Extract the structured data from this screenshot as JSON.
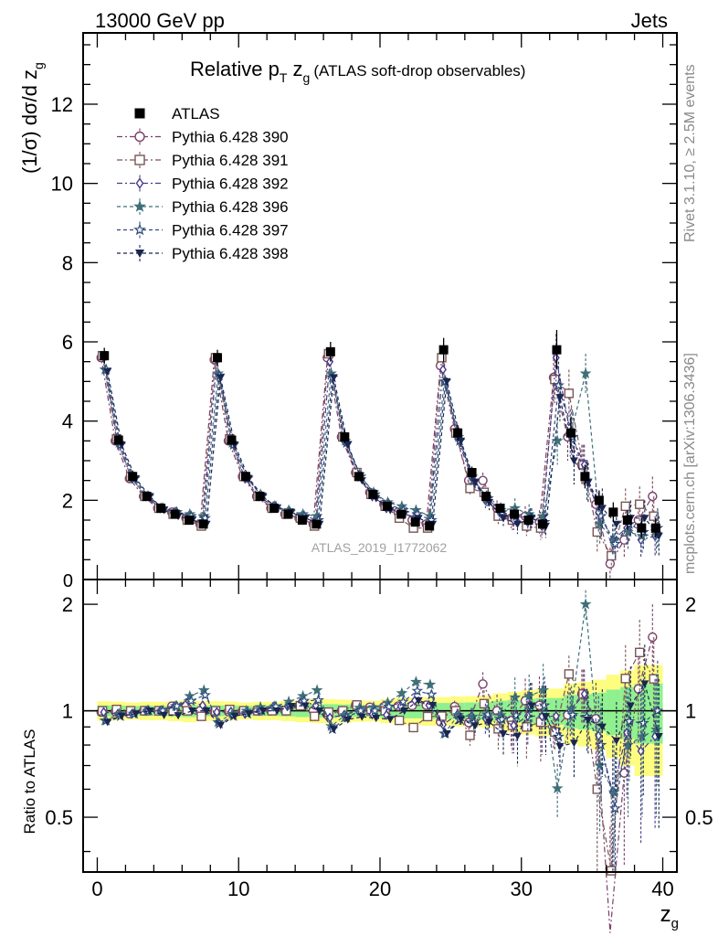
{
  "header": {
    "left": "13000 GeV pp",
    "right": "Jets"
  },
  "side_labels": {
    "rivet": "Rivet 3.1.10, ≥ 2.5M events",
    "mcplots": "mcplots.cern.ch [arXiv:1306.3436]"
  },
  "watermark": "ATLAS_2019_I1772062",
  "chart_data": {
    "type": "line",
    "title": "Relative pT zg (ATLAS soft-drop observables)",
    "title_parts": {
      "main": "Relative p",
      "sub": "T",
      "tail": " z",
      "tail_sub": "g",
      "paren": "(ATLAS soft-drop observables)"
    },
    "ylabel": "(1/σ) dσ/d z",
    "ylabel_sub": "g",
    "xlabel": "z",
    "xlabel_sub": "g",
    "ratio_ylabel": "Ratio to ATLAS",
    "xlim": [
      -1,
      41
    ],
    "ylim": [
      0,
      13.8
    ],
    "ratio_ylim": [
      0.35,
      2.35
    ],
    "x_ticks": [
      "0",
      "10",
      "20",
      "30",
      "40"
    ],
    "y_ticks": [
      "2",
      "4",
      "6",
      "8",
      "10",
      "12"
    ],
    "ratio_ticks": [
      "0.5",
      "1",
      "2"
    ],
    "legend_position": "top-left",
    "x": [
      0.5,
      1.5,
      2.5,
      3.5,
      4.5,
      5.5,
      6.5,
      7.5,
      8.5,
      9.5,
      10.5,
      11.5,
      12.5,
      13.5,
      14.5,
      15.5,
      16.5,
      17.5,
      18.5,
      19.5,
      20.5,
      21.5,
      22.5,
      23.5,
      24.5,
      25.5,
      26.5,
      27.5,
      28.5,
      29.5,
      30.5,
      31.5,
      32.5,
      33.5,
      34.5,
      35.5,
      36.5,
      37.5,
      38.5,
      39.5
    ],
    "series": [
      {
        "name": "ATLAS",
        "color": "#000000",
        "marker": "square-filled",
        "values": [
          5.65,
          3.52,
          2.6,
          2.1,
          1.8,
          1.65,
          1.5,
          1.4,
          5.6,
          3.52,
          2.6,
          2.1,
          1.8,
          1.65,
          1.5,
          1.4,
          5.75,
          3.6,
          2.6,
          2.15,
          1.85,
          1.65,
          1.45,
          1.35,
          5.8,
          3.7,
          2.7,
          2.1,
          1.8,
          1.65,
          1.5,
          1.4,
          5.8,
          3.7,
          2.6,
          2.0,
          1.7,
          1.5,
          1.3,
          1.3
        ],
        "errors": [
          0.2,
          0.12,
          0.08,
          0.07,
          0.06,
          0.06,
          0.06,
          0.05,
          0.2,
          0.12,
          0.08,
          0.07,
          0.06,
          0.06,
          0.06,
          0.06,
          0.25,
          0.15,
          0.1,
          0.08,
          0.08,
          0.08,
          0.07,
          0.07,
          0.3,
          0.2,
          0.15,
          0.12,
          0.12,
          0.12,
          0.12,
          0.12,
          0.5,
          0.4,
          0.3,
          0.25,
          0.25,
          0.25,
          0.25,
          0.25
        ]
      },
      {
        "name": "Pythia 6.428 390",
        "color": "#7b3f6b",
        "marker": "circle-open",
        "values": [
          5.6,
          3.5,
          2.55,
          2.1,
          1.8,
          1.7,
          1.55,
          1.4,
          5.55,
          3.5,
          2.6,
          2.1,
          1.8,
          1.65,
          1.55,
          1.4,
          5.6,
          3.6,
          2.7,
          2.2,
          1.9,
          1.7,
          1.5,
          1.4,
          5.4,
          3.8,
          2.5,
          2.5,
          1.8,
          1.55,
          1.6,
          1.45,
          5.1,
          3.6,
          2.9,
          1.9,
          0.4,
          1.0,
          1.5,
          2.1
        ],
        "errors": [
          0.05,
          0.04,
          0.03,
          0.03,
          0.03,
          0.03,
          0.03,
          0.03,
          0.05,
          0.04,
          0.03,
          0.03,
          0.03,
          0.03,
          0.03,
          0.03,
          0.06,
          0.05,
          0.04,
          0.04,
          0.04,
          0.04,
          0.04,
          0.04,
          0.1,
          0.15,
          0.15,
          0.2,
          0.2,
          0.25,
          0.25,
          0.3,
          0.6,
          0.6,
          0.5,
          0.5,
          0.4,
          0.45,
          0.45,
          0.5
        ]
      },
      {
        "name": "Pythia 6.428 391",
        "color": "#7a5555",
        "marker": "square-open",
        "values": [
          5.65,
          3.55,
          2.6,
          2.1,
          1.8,
          1.65,
          1.5,
          1.35,
          5.6,
          3.55,
          2.6,
          2.1,
          1.8,
          1.65,
          1.55,
          1.35,
          5.7,
          3.6,
          2.7,
          2.15,
          1.85,
          1.55,
          1.3,
          1.3,
          5.6,
          3.7,
          2.3,
          2.2,
          1.6,
          1.5,
          1.35,
          1.3,
          5.05,
          4.7,
          2.9,
          1.2,
          0.6,
          1.85,
          1.9,
          1.6
        ],
        "errors": [
          0.05,
          0.04,
          0.03,
          0.03,
          0.03,
          0.03,
          0.03,
          0.03,
          0.05,
          0.04,
          0.03,
          0.03,
          0.03,
          0.03,
          0.03,
          0.03,
          0.06,
          0.05,
          0.04,
          0.04,
          0.04,
          0.04,
          0.04,
          0.04,
          0.1,
          0.15,
          0.15,
          0.2,
          0.2,
          0.25,
          0.25,
          0.3,
          0.6,
          0.6,
          0.5,
          0.5,
          0.4,
          0.45,
          0.45,
          0.5
        ]
      },
      {
        "name": "Pythia 6.428 392",
        "color": "#4a3a8a",
        "marker": "diamond-open",
        "values": [
          5.6,
          3.45,
          2.55,
          2.1,
          1.8,
          1.7,
          1.6,
          1.45,
          5.55,
          3.5,
          2.55,
          2.1,
          1.85,
          1.7,
          1.6,
          1.45,
          5.5,
          3.5,
          2.6,
          2.1,
          1.8,
          1.7,
          1.55,
          1.4,
          5.3,
          3.6,
          2.6,
          2.0,
          1.7,
          1.5,
          1.45,
          1.35,
          5.6,
          3.7,
          2.9,
          1.7,
          1.0,
          1.3,
          1.0,
          1.1
        ],
        "errors": [
          0.05,
          0.04,
          0.03,
          0.03,
          0.03,
          0.03,
          0.03,
          0.03,
          0.05,
          0.04,
          0.03,
          0.03,
          0.03,
          0.03,
          0.03,
          0.03,
          0.06,
          0.05,
          0.04,
          0.04,
          0.04,
          0.04,
          0.04,
          0.04,
          0.1,
          0.15,
          0.15,
          0.2,
          0.2,
          0.25,
          0.25,
          0.3,
          0.6,
          0.6,
          0.5,
          0.5,
          0.4,
          0.45,
          0.45,
          0.5
        ]
      },
      {
        "name": "Pythia 6.428 396",
        "color": "#3f6f7a",
        "marker": "star-filled",
        "values": [
          5.3,
          3.45,
          2.55,
          2.1,
          1.8,
          1.7,
          1.65,
          1.6,
          5.2,
          3.45,
          2.6,
          2.15,
          1.85,
          1.75,
          1.65,
          1.6,
          5.2,
          3.5,
          2.65,
          2.2,
          1.95,
          1.85,
          1.75,
          1.6,
          5.0,
          3.6,
          2.6,
          2.05,
          1.75,
          1.8,
          1.65,
          1.6,
          3.5,
          3.75,
          5.2,
          1.4,
          1.0,
          1.2,
          1.1,
          1.15
        ],
        "errors": [
          0.05,
          0.04,
          0.03,
          0.03,
          0.03,
          0.03,
          0.03,
          0.03,
          0.05,
          0.04,
          0.03,
          0.03,
          0.03,
          0.03,
          0.03,
          0.03,
          0.06,
          0.05,
          0.04,
          0.04,
          0.04,
          0.04,
          0.04,
          0.04,
          0.1,
          0.15,
          0.15,
          0.2,
          0.2,
          0.25,
          0.25,
          0.3,
          0.6,
          0.6,
          0.5,
          0.5,
          0.4,
          0.45,
          0.45,
          0.5
        ]
      },
      {
        "name": "Pythia 6.428 397",
        "color": "#2f4a7a",
        "marker": "star-open",
        "values": [
          5.3,
          3.4,
          2.55,
          2.1,
          1.8,
          1.7,
          1.6,
          1.55,
          5.15,
          3.4,
          2.55,
          2.1,
          1.85,
          1.7,
          1.6,
          1.5,
          5.1,
          3.45,
          2.6,
          2.15,
          1.9,
          1.75,
          1.65,
          1.5,
          5.0,
          3.5,
          2.5,
          2.05,
          1.7,
          1.6,
          1.55,
          1.45,
          4.9,
          3.6,
          2.5,
          1.6,
          0.9,
          1.4,
          1.2,
          1.3
        ],
        "errors": [
          0.05,
          0.04,
          0.03,
          0.03,
          0.03,
          0.03,
          0.03,
          0.03,
          0.05,
          0.04,
          0.03,
          0.03,
          0.03,
          0.03,
          0.03,
          0.03,
          0.06,
          0.05,
          0.04,
          0.04,
          0.04,
          0.04,
          0.04,
          0.04,
          0.1,
          0.15,
          0.15,
          0.2,
          0.2,
          0.25,
          0.25,
          0.3,
          0.6,
          0.6,
          0.5,
          0.5,
          0.4,
          0.45,
          0.45,
          0.5
        ]
      },
      {
        "name": "Pythia 6.428 398",
        "color": "#1a2550",
        "marker": "triangle-down-filled",
        "values": [
          5.25,
          3.4,
          2.55,
          2.1,
          1.75,
          1.6,
          1.5,
          1.4,
          5.1,
          3.4,
          2.55,
          2.1,
          1.8,
          1.7,
          1.55,
          1.4,
          5.1,
          3.4,
          2.5,
          2.05,
          1.75,
          1.65,
          1.55,
          1.4,
          5.0,
          3.5,
          2.45,
          1.95,
          1.55,
          1.4,
          1.55,
          1.35,
          4.6,
          3.0,
          2.45,
          1.8,
          1.4,
          1.55,
          1.55,
          1.1
        ],
        "errors": [
          0.05,
          0.04,
          0.03,
          0.03,
          0.03,
          0.03,
          0.03,
          0.03,
          0.05,
          0.04,
          0.03,
          0.03,
          0.03,
          0.03,
          0.03,
          0.03,
          0.06,
          0.05,
          0.04,
          0.04,
          0.04,
          0.04,
          0.04,
          0.04,
          0.1,
          0.15,
          0.15,
          0.2,
          0.2,
          0.25,
          0.25,
          0.3,
          0.6,
          0.6,
          0.5,
          0.5,
          0.4,
          0.45,
          0.45,
          0.5
        ]
      }
    ],
    "band_colors": {
      "inner": "#8ff08f",
      "outer": "#fdfd7f"
    }
  }
}
